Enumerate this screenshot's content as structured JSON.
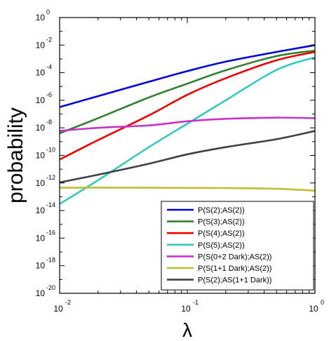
{
  "chart_data": {
    "type": "line",
    "xlabel": "λ",
    "ylabel": "probability",
    "x_scale": "log",
    "y_scale": "log",
    "xlim": [
      0.01,
      1
    ],
    "ylim": [
      1e-20,
      1
    ],
    "x_ticks": [
      {
        "base": "10",
        "exp": "-2",
        "value": 0.01
      },
      {
        "base": "10",
        "exp": "-1",
        "value": 0.1
      },
      {
        "base": "10",
        "exp": "0",
        "value": 1
      }
    ],
    "y_ticks": [
      {
        "base": "10",
        "exp": "0",
        "value": 1
      },
      {
        "base": "10",
        "exp": "-2",
        "value": 0.01
      },
      {
        "base": "10",
        "exp": "-4",
        "value": 0.0001
      },
      {
        "base": "10",
        "exp": "-6",
        "value": 1e-06
      },
      {
        "base": "10",
        "exp": "-8",
        "value": 1e-08
      },
      {
        "base": "10",
        "exp": "-10",
        "value": 1e-10
      },
      {
        "base": "10",
        "exp": "-12",
        "value": 1e-12
      },
      {
        "base": "10",
        "exp": "-14",
        "value": 1e-14
      },
      {
        "base": "10",
        "exp": "-16",
        "value": 1e-16
      },
      {
        "base": "10",
        "exp": "-18",
        "value": 1e-18
      },
      {
        "base": "10",
        "exp": "-20",
        "value": 1e-20
      }
    ],
    "grid": false,
    "legend_position": "bottom-right",
    "x": [
      0.01,
      0.02,
      0.05,
      0.1,
      0.2,
      0.5,
      1.0
    ],
    "series": [
      {
        "name": "P(S(2);AS(2))",
        "color": "#0000dd",
        "values": [
          3.2e-07,
          2e-06,
          2.2e-05,
          0.00013,
          0.00063,
          0.0032,
          0.01
        ]
      },
      {
        "name": "P(S(3);AS(2))",
        "color": "#338033",
        "values": [
          4e-09,
          5e-08,
          1.6e-06,
          1.6e-05,
          0.00015,
          0.0016,
          0.004
        ]
      },
      {
        "name": "P(S(4);AS(2))",
        "color": "#ee0000",
        "values": [
          5e-11,
          1.3e-09,
          8e-08,
          2.5e-06,
          4e-05,
          0.0008,
          0.0032
        ]
      },
      {
        "name": "P(S(5);AS(2))",
        "color": "#33c8c0",
        "values": [
          3e-14,
          1.6e-12,
          4e-10,
          2e-08,
          1e-06,
          0.00016,
          0.0013
        ]
      },
      {
        "name": "P(S(0+2 Dark);AS(2))",
        "color": "#c832c8",
        "values": [
          6e-09,
          1e-08,
          1.5e-08,
          3e-08,
          4.5e-08,
          5.5e-08,
          5e-08
        ]
      },
      {
        "name": "P(S(1+1 Dark);AS(2))",
        "color": "#bebe32",
        "values": [
          4.5e-13,
          4.6e-13,
          4.5e-13,
          4.4e-13,
          4.3e-13,
          3.8e-13,
          2.8e-13
        ]
      },
      {
        "name": "P(S(2);AS(1+1 Dark))",
        "color": "#404040",
        "values": [
          1.1e-12,
          4e-12,
          2.5e-11,
          1.2e-10,
          4e-10,
          1.5e-09,
          6e-09
        ]
      }
    ]
  }
}
